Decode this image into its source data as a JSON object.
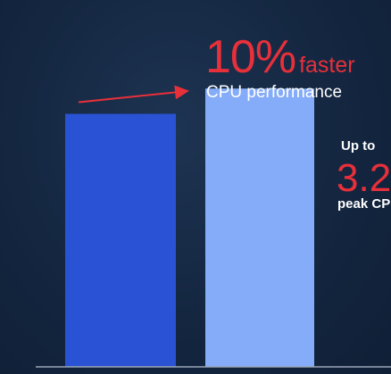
{
  "headline": {
    "percent": "10%",
    "faster": "faster",
    "subtitle": "CPU performance"
  },
  "side_callout": {
    "prefix": "Up to",
    "value": "3.2",
    "caption": "peak CP"
  },
  "colors": {
    "background": "#142640",
    "bar_previous": "#2a52d4",
    "bar_current": "#85acf8",
    "accent_red": "#e8303a",
    "baseline": "#9aa6b8"
  },
  "chart_data": {
    "type": "bar",
    "categories": [
      "",
      ""
    ],
    "values": [
      100,
      110
    ],
    "title": "",
    "xlabel": "",
    "ylabel": "",
    "ylim": [
      0,
      145
    ],
    "grid": false,
    "legend": "none",
    "annotation": "10% faster CPU performance"
  }
}
